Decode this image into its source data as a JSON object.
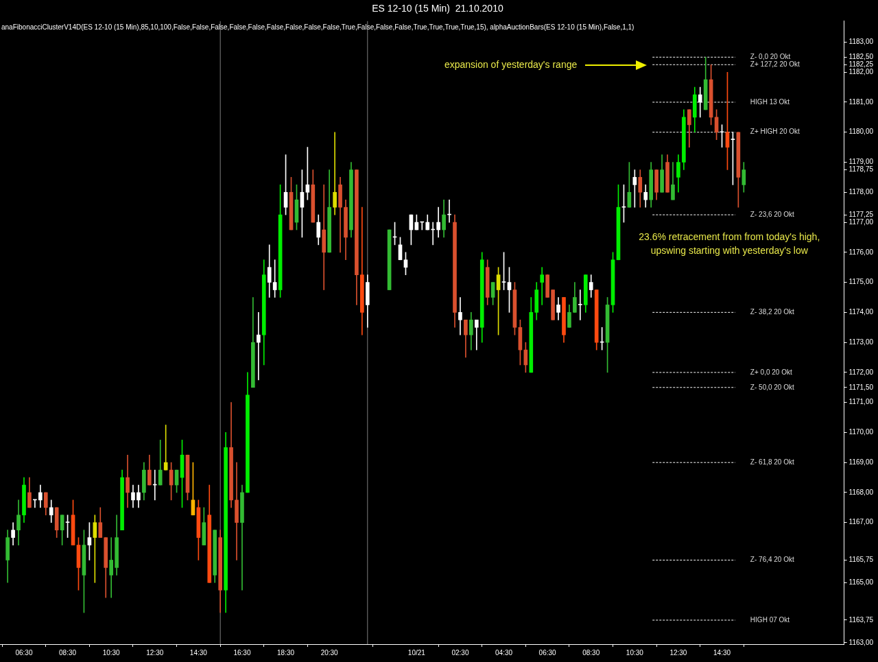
{
  "chart_data": {
    "type": "candlestick",
    "title": "ES 12-10 (15 Min)  21.10.2010",
    "x": [
      "2010-10-20T05:45",
      "2010-10-20T06:00",
      "2010-10-20T06:15",
      "2010-10-20T06:30",
      "2010-10-20T06:45",
      "2010-10-20T07:00",
      "2010-10-20T07:15",
      "2010-10-20T07:30",
      "2010-10-20T07:45",
      "2010-10-20T08:00",
      "2010-10-20T08:15",
      "2010-10-20T08:30",
      "2010-10-20T08:45",
      "2010-10-20T09:00",
      "2010-10-20T09:15",
      "2010-10-20T09:30",
      "2010-10-20T09:45",
      "2010-10-20T10:00",
      "2010-10-20T10:15",
      "2010-10-20T10:30",
      "2010-10-20T10:45",
      "2010-10-20T11:00",
      "2010-10-20T11:15",
      "2010-10-20T11:30",
      "2010-10-20T11:45",
      "2010-10-20T12:00",
      "2010-10-20T12:15",
      "2010-10-20T12:30",
      "2010-10-20T12:45",
      "2010-10-20T13:00",
      "2010-10-20T13:15",
      "2010-10-20T13:30",
      "2010-10-20T13:45",
      "2010-10-20T14:00",
      "2010-10-20T14:15",
      "2010-10-20T14:30",
      "2010-10-20T14:45",
      "2010-10-20T15:00",
      "2010-10-20T15:15",
      "2010-10-20T15:30",
      "2010-10-20T15:45",
      "2010-10-20T16:00",
      "2010-10-20T16:15",
      "2010-10-20T16:30",
      "2010-10-20T16:45",
      "2010-10-20T17:00",
      "2010-10-20T17:15",
      "2010-10-20T17:30",
      "2010-10-20T17:45",
      "2010-10-20T18:00",
      "2010-10-20T18:15",
      "2010-10-20T18:30",
      "2010-10-20T18:45",
      "2010-10-20T19:00",
      "2010-10-20T19:15",
      "2010-10-20T19:30",
      "2010-10-20T19:45",
      "2010-10-20T20:00",
      "2010-10-20T20:15",
      "2010-10-20T20:30",
      "2010-10-20T20:45",
      "2010-10-20T21:00",
      "2010-10-20T21:15",
      "2010-10-20T21:30",
      "2010-10-20T21:45",
      "2010-10-20T22:00",
      "2010-10-20T22:15",
      "2010-10-20T23:15",
      "2010-10-20T23:30",
      "2010-10-20T23:45",
      "2010-10-21T00:00",
      "2010-10-21T00:15",
      "2010-10-21T00:30",
      "2010-10-21T00:45",
      "2010-10-21T01:00",
      "2010-10-21T01:15",
      "2010-10-21T01:30",
      "2010-10-21T01:45",
      "2010-10-21T02:00",
      "2010-10-21T02:15",
      "2010-10-21T02:30",
      "2010-10-21T02:45",
      "2010-10-21T03:00",
      "2010-10-21T03:15",
      "2010-10-21T03:30",
      "2010-10-21T03:45",
      "2010-10-21T04:00",
      "2010-10-21T04:15",
      "2010-10-21T04:30",
      "2010-10-21T04:45",
      "2010-10-21T05:00",
      "2010-10-21T05:15",
      "2010-10-21T05:30",
      "2010-10-21T05:45",
      "2010-10-21T06:00",
      "2010-10-21T06:15",
      "2010-10-21T06:30",
      "2010-10-21T06:45",
      "2010-10-21T07:00",
      "2010-10-21T07:15",
      "2010-10-21T07:30",
      "2010-10-21T07:45",
      "2010-10-21T08:00",
      "2010-10-21T08:15",
      "2010-10-21T08:30",
      "2010-10-21T08:45",
      "2010-10-21T09:00",
      "2010-10-21T09:15",
      "2010-10-21T09:30",
      "2010-10-21T09:45",
      "2010-10-21T10:00",
      "2010-10-21T10:15",
      "2010-10-21T10:30",
      "2010-10-21T10:45",
      "2010-10-21T11:00",
      "2010-10-21T11:15",
      "2010-10-21T11:30",
      "2010-10-21T11:45",
      "2010-10-21T12:00",
      "2010-10-21T12:15",
      "2010-10-21T12:30",
      "2010-10-21T12:45",
      "2010-10-21T13:00",
      "2010-10-21T13:15",
      "2010-10-21T13:30",
      "2010-10-21T13:45",
      "2010-10-21T14:00",
      "2010-10-21T14:15",
      "2010-10-21T14:30",
      "2010-10-21T14:45",
      "2010-10-21T15:00",
      "2010-10-21T15:15",
      "2010-10-21T15:30"
    ],
    "ohlc": [
      [
        1165.75,
        1166.75,
        1165,
        1166.5
      ],
      [
        1166.5,
        1167,
        1166.25,
        1166.75
      ],
      [
        1166.75,
        1167.75,
        1166.25,
        1167.25
      ],
      [
        1167.25,
        1168.5,
        1167,
        1168.25
      ],
      [
        1168,
        1168.5,
        1167.5,
        1167.5
      ],
      [
        1167.75,
        1167.75,
        1167.5,
        1167.75
      ],
      [
        1167.75,
        1168.25,
        1167.5,
        1168
      ],
      [
        1168,
        1168,
        1167.25,
        1167.5
      ],
      [
        1167.5,
        1167.75,
        1167,
        1167.25
      ],
      [
        1167.5,
        1167.5,
        1166.5,
        1166.75
      ],
      [
        1166.75,
        1167.25,
        1166.25,
        1167.25
      ],
      [
        1167,
        1167.25,
        1166.5,
        1167
      ],
      [
        1167.25,
        1167.75,
        1166.25,
        1166.25
      ],
      [
        1166.25,
        1166.5,
        1164.75,
        1165.5
      ],
      [
        1165.25,
        1166.75,
        1164,
        1166.25
      ],
      [
        1166.5,
        1167,
        1165.75,
        1166.25
      ],
      [
        1166.5,
        1167.25,
        1165,
        1167
      ],
      [
        1167,
        1167.5,
        1166.5,
        1166.5
      ],
      [
        1166.5,
        1166.5,
        1164.5,
        1165.5
      ],
      [
        1165.25,
        1166.5,
        1164.5,
        1165.75
      ],
      [
        1165.5,
        1167.25,
        1165.25,
        1166.5
      ],
      [
        1166.75,
        1168.75,
        1166.75,
        1168.5
      ],
      [
        1168.5,
        1169.25,
        1167.5,
        1168
      ],
      [
        1168,
        1168.25,
        1167.5,
        1167.75
      ],
      [
        1167.75,
        1168.25,
        1167.5,
        1168
      ],
      [
        1168,
        1169,
        1167.75,
        1168.75
      ],
      [
        1168.75,
        1169.25,
        1168.25,
        1168.25
      ],
      [
        1168.25,
        1168.75,
        1167.75,
        1168.25
      ],
      [
        1168.25,
        1169.75,
        1168.25,
        1168.75
      ],
      [
        1168.75,
        1170.25,
        1168.75,
        1169
      ],
      [
        1168.75,
        1169,
        1167.75,
        1168.25
      ],
      [
        1168.25,
        1168.75,
        1168,
        1168.75
      ],
      [
        1168.5,
        1169.75,
        1167.5,
        1169.25
      ],
      [
        1169.25,
        1169.25,
        1167.75,
        1168
      ],
      [
        1167.75,
        1169,
        1167.25,
        1167.25
      ],
      [
        1167.5,
        1167.75,
        1165.75,
        1166.5
      ],
      [
        1166.25,
        1167.5,
        1166.25,
        1167
      ],
      [
        1167.25,
        1168.25,
        1165,
        1165
      ],
      [
        1165.25,
        1166.75,
        1165,
        1166.75
      ],
      [
        1166.5,
        1166.75,
        1164,
        1164.75
      ],
      [
        1164.75,
        1170,
        1164,
        1169.5
      ],
      [
        1169.5,
        1171,
        1167.5,
        1167.75
      ],
      [
        1167.75,
        1169,
        1165.75,
        1167
      ],
      [
        1167,
        1168.25,
        1164.75,
        1168
      ],
      [
        1168,
        1172,
        1168,
        1171.25
      ],
      [
        1171.5,
        1174.5,
        1171.5,
        1173
      ],
      [
        1173,
        1174,
        1171.75,
        1173.25
      ],
      [
        1173.25,
        1175.75,
        1172.25,
        1175.25
      ],
      [
        1175.5,
        1176.25,
        1174.5,
        1175
      ],
      [
        1175,
        1175.75,
        1174.5,
        1174.75
      ],
      [
        1174.75,
        1178.25,
        1174.5,
        1177.25
      ],
      [
        1177.5,
        1179.25,
        1177.25,
        1178
      ],
      [
        1178,
        1178.5,
        1176.75,
        1176.75
      ],
      [
        1177,
        1178.25,
        1176.75,
        1177.75
      ],
      [
        1177.5,
        1178.75,
        1176.5,
        1178
      ],
      [
        1178,
        1179.5,
        1177.75,
        1178.25
      ],
      [
        1178.25,
        1178.75,
        1177,
        1177
      ],
      [
        1177,
        1177.25,
        1176.25,
        1176.5
      ],
      [
        1176.75,
        1178.25,
        1174.75,
        1176
      ],
      [
        1176,
        1178.75,
        1176,
        1177.5
      ],
      [
        1177.5,
        1180,
        1177.25,
        1178
      ],
      [
        1178.25,
        1178.5,
        1176,
        1177.5
      ],
      [
        1177.5,
        1177.75,
        1175.75,
        1176.5
      ],
      [
        1176.75,
        1179,
        1176.5,
        1178.75
      ],
      [
        1178.75,
        1178.75,
        1174.25,
        1175.25
      ],
      [
        1175.25,
        1177.5,
        1173.25,
        1174
      ],
      [
        1174.25,
        1175.25,
        1173.5,
        1175
      ],
      [
        1174.75,
        1176.75,
        1174.75,
        1176.75
      ],
      [
        1176.5,
        1177,
        1176.25,
        1176.5
      ],
      [
        1176.25,
        1176.5,
        1175.75,
        1175.75
      ],
      [
        1175.75,
        1176,
        1175.25,
        1175.5
      ],
      [
        1176.75,
        1177.25,
        1176.25,
        1177.25
      ],
      [
        1177,
        1177.25,
        1176.75,
        1176.75
      ],
      [
        1177,
        1177,
        1176.75,
        1177
      ],
      [
        1177,
        1177.25,
        1176.75,
        1176.75
      ],
      [
        1176.75,
        1177,
        1176.25,
        1176.75
      ],
      [
        1177,
        1177.5,
        1176.5,
        1176.75
      ],
      [
        1176.75,
        1177.75,
        1176.5,
        1177.25
      ],
      [
        1177.25,
        1177.75,
        1177,
        1177.25
      ],
      [
        1177,
        1177.25,
        1173.5,
        1174
      ],
      [
        1174,
        1174.5,
        1173.25,
        1173.75
      ],
      [
        1173.75,
        1173.75,
        1172.5,
        1173.25
      ],
      [
        1173.25,
        1174,
        1172.75,
        1173.75
      ],
      [
        1173.5,
        1173.75,
        1172.75,
        1173.75
      ],
      [
        1173.5,
        1176,
        1173,
        1175.75
      ],
      [
        1175.5,
        1175.75,
        1174.25,
        1174.5
      ],
      [
        1174.5,
        1175,
        1174.25,
        1175
      ],
      [
        1174.75,
        1175.5,
        1173.25,
        1175.25
      ],
      [
        1175,
        1176,
        1174.75,
        1175
      ],
      [
        1175,
        1175.5,
        1174,
        1174.75
      ],
      [
        1174.75,
        1175,
        1173.25,
        1173.5
      ],
      [
        1173.5,
        1173.75,
        1172.25,
        1172.75
      ],
      [
        1172.75,
        1173,
        1172,
        1172.25
      ],
      [
        1172,
        1174.5,
        1172,
        1174
      ],
      [
        1174,
        1175,
        1173.75,
        1174.75
      ],
      [
        1175,
        1175.5,
        1174.25,
        1175.25
      ],
      [
        1175.25,
        1175.25,
        1174.5,
        1174.5
      ],
      [
        1174.75,
        1174.75,
        1173.75,
        1173.75
      ],
      [
        1174,
        1174.5,
        1173.75,
        1174.25
      ],
      [
        1174.5,
        1174.5,
        1173,
        1173.25
      ],
      [
        1173.5,
        1174.25,
        1173.5,
        1174
      ],
      [
        1174,
        1175,
        1174,
        1174.5
      ],
      [
        1174.25,
        1174.75,
        1173.75,
        1174.25
      ],
      [
        1174.25,
        1175.25,
        1174,
        1175.25
      ],
      [
        1175,
        1175.25,
        1174.5,
        1174.75
      ],
      [
        1174.75,
        1174.75,
        1172.75,
        1173
      ],
      [
        1173,
        1173.5,
        1172.75,
        1173
      ],
      [
        1173,
        1174.5,
        1172,
        1174.25
      ],
      [
        1174.25,
        1176,
        1174,
        1175.75
      ],
      [
        1175.75,
        1178.25,
        1175.75,
        1177.5
      ],
      [
        1177.5,
        1178.25,
        1177,
        1177.5
      ],
      [
        1177.5,
        1179,
        1177.5,
        1178
      ],
      [
        1178.25,
        1178.75,
        1177.5,
        1178.5
      ],
      [
        1178.5,
        1178.75,
        1177.5,
        1178
      ],
      [
        1178,
        1178.25,
        1177.5,
        1177.75
      ],
      [
        1177.75,
        1179,
        1177.5,
        1178.75
      ],
      [
        1178.75,
        1178.75,
        1177.75,
        1178
      ],
      [
        1178,
        1179.25,
        1178,
        1178.75
      ],
      [
        1179,
        1179.25,
        1178,
        1178
      ],
      [
        1177.75,
        1179,
        1177.75,
        1178.25
      ],
      [
        1178.5,
        1179.25,
        1178,
        1179
      ],
      [
        1179,
        1180.75,
        1178.75,
        1180.5
      ],
      [
        1180.75,
        1180.75,
        1179.5,
        1180.25
      ],
      [
        1180.5,
        1181.5,
        1180,
        1181.25
      ],
      [
        1181.25,
        1181.5,
        1180.5,
        1181
      ],
      [
        1180.75,
        1182.5,
        1180.75,
        1181.75
      ],
      [
        1181.75,
        1182.25,
        1180.25,
        1180.5
      ],
      [
        1180.5,
        1180.75,
        1179.75,
        1180
      ],
      [
        1180,
        1180.25,
        1179.5,
        1180
      ],
      [
        1180,
        1182,
        1178.75,
        1179.5
      ],
      [
        1179.75,
        1180,
        1178.25,
        1179.75
      ],
      [
        1180,
        1180,
        1177.5,
        1178.5
      ],
      [
        1178.25,
        1179,
        1178,
        1178.75
      ]
    ],
    "colors": [
      "#33bb33",
      "#ffffff",
      "#33bb33",
      "#00ee00",
      "#d9502e",
      "#ffffff",
      "#ffffff",
      "#d9502e",
      "#ffffff",
      "#d9502e",
      "#33bb33",
      "#ffffff",
      "#ff4a10",
      "#ff4a10",
      "#33bb33",
      "#ffffff",
      "#dddd00",
      "#d9502e",
      "#d9502e",
      "#33bb33",
      "#33bb33",
      "#00ee00",
      "#d9502e",
      "#ffffff",
      "#ffffff",
      "#33bb33",
      "#d9502e",
      "#ffffff",
      "#33bb33",
      "#dddd00",
      "#d9502e",
      "#33bb33",
      "#00ee00",
      "#d9502e",
      "#ffb300",
      "#ff4a10",
      "#33bb33",
      "#ff4a10",
      "#33bb33",
      "#d9502e",
      "#00ee00",
      "#d9502e",
      "#d9502e",
      "#33bb33",
      "#00ee00",
      "#33bb33",
      "#ffffff",
      "#00ee00",
      "#ffffff",
      "#ffffff",
      "#00ee00",
      "#ffffff",
      "#d9502e",
      "#33bb33",
      "#ffffff",
      "#ffffff",
      "#d9502e",
      "#ffffff",
      "#d9502e",
      "#33bb33",
      "#dddd00",
      "#d9502e",
      "#d9502e",
      "#33bb33",
      "#d9502e",
      "#ff4a10",
      "#ffffff",
      "#33bb33",
      "#ffffff",
      "#ffffff",
      "#ffffff",
      "#ffffff",
      "#ffffff",
      "#ffffff",
      "#ffffff",
      "#ffffff",
      "#ffffff",
      "#33bb33",
      "#ffffff",
      "#d9502e",
      "#ffffff",
      "#d9502e",
      "#33bb33",
      "#ffffff",
      "#00ee00",
      "#d9502e",
      "#33bb33",
      "#dddd00",
      "#ffffff",
      "#ffffff",
      "#d9502e",
      "#d9502e",
      "#d9502e",
      "#00ee00",
      "#00ee00",
      "#00ee00",
      "#d9502e",
      "#d9502e",
      "#ffffff",
      "#ff4a10",
      "#33bb33",
      "#33bb33",
      "#ffffff",
      "#00ee00",
      "#ffffff",
      "#ff4a10",
      "#ffffff",
      "#33bb33",
      "#00ee00",
      "#00ee00",
      "#ffffff",
      "#33bb33",
      "#ffffff",
      "#d9502e",
      "#ffffff",
      "#33bb33",
      "#d9502e",
      "#33bb33",
      "#d9502e",
      "#33bb33",
      "#00ee00",
      "#00ee00",
      "#d9502e",
      "#00ee00",
      "#ffffff",
      "#33bb33",
      "#d9502e",
      "#d9502e",
      "#ffffff",
      "#ff4a10",
      "#ffffff",
      "#d9502e",
      "#33bb33"
    ],
    "xlim": [
      "2010-10-20T05:24",
      "2010-10-21T20:06"
    ],
    "xticks": [
      {
        "value": "2010-10-20T06:30",
        "label": "06:30"
      },
      {
        "value": "2010-10-20T08:30",
        "label": "08:30"
      },
      {
        "value": "2010-10-20T10:30",
        "label": "10:30"
      },
      {
        "value": "2010-10-20T12:30",
        "label": "12:30"
      },
      {
        "value": "2010-10-20T14:30",
        "label": "14:30"
      },
      {
        "value": "2010-10-20T16:30",
        "label": "16:30"
      },
      {
        "value": "2010-10-20T18:30",
        "label": "18:30"
      },
      {
        "value": "2010-10-20T20:30",
        "label": "20:30"
      },
      {
        "value": "2010-10-21T00:30",
        "label": "10/21"
      },
      {
        "value": "2010-10-21T02:30",
        "label": "02:30"
      },
      {
        "value": "2010-10-21T04:30",
        "label": "04:30"
      },
      {
        "value": "2010-10-21T06:30",
        "label": "06:30"
      },
      {
        "value": "2010-10-21T08:30",
        "label": "08:30"
      },
      {
        "value": "2010-10-21T10:30",
        "label": "10:30"
      },
      {
        "value": "2010-10-21T12:30",
        "label": "12:30"
      },
      {
        "value": "2010-10-21T14:30",
        "label": "14:30"
      }
    ],
    "ylim": [
      1162.95,
      1183.7
    ],
    "yticks": [
      {
        "value": 1163,
        "label": "1163,00"
      },
      {
        "value": 1163.75,
        "label": "1163,75"
      },
      {
        "value": 1165,
        "label": "1165,00"
      },
      {
        "value": 1165.75,
        "label": "1165,75"
      },
      {
        "value": 1167,
        "label": "1167,00"
      },
      {
        "value": 1168,
        "label": "1168,00"
      },
      {
        "value": 1169,
        "label": "1169,00"
      },
      {
        "value": 1170,
        "label": "1170,00"
      },
      {
        "value": 1171,
        "label": "1171,00"
      },
      {
        "value": 1171.5,
        "label": "1171,50"
      },
      {
        "value": 1172,
        "label": "1172,00"
      },
      {
        "value": 1173,
        "label": "1173,00"
      },
      {
        "value": 1174,
        "label": "1174,00"
      },
      {
        "value": 1175,
        "label": "1175,00"
      },
      {
        "value": 1176,
        "label": "1176,00"
      },
      {
        "value": 1177,
        "label": "1177,00"
      },
      {
        "value": 1177.25,
        "label": "1177,25"
      },
      {
        "value": 1178,
        "label": "1178,00"
      },
      {
        "value": 1178.75,
        "label": "1178,75"
      },
      {
        "value": 1179,
        "label": "1179,00"
      },
      {
        "value": 1180,
        "label": "1180,00"
      },
      {
        "value": 1181,
        "label": "1181,00"
      },
      {
        "value": 1182,
        "label": "1182,00"
      },
      {
        "value": 1182.25,
        "label": "1182,25"
      },
      {
        "value": 1182.5,
        "label": "1182,50"
      },
      {
        "value": 1183,
        "label": "1183,00"
      }
    ],
    "ref_lines": [
      {
        "axis": "x",
        "value": "2010-10-20T15:30",
        "color": "#7f7f7f"
      },
      {
        "axis": "x",
        "value": "2010-10-20T22:15",
        "color": "#7f7f7f"
      },
      {
        "axis": "y",
        "value": 1182.5,
        "label": "Z- 0,0 20 Okt",
        "color": "#ffffff",
        "line_style": "dashed"
      },
      {
        "axis": "y",
        "value": 1182.25,
        "label": "Z+ 127,2 20 Okt",
        "color": "#ffffff",
        "line_style": "dashed"
      },
      {
        "axis": "y",
        "value": 1181,
        "label": "HIGH 13 Okt",
        "color": "#ffffff",
        "line_style": "dashed"
      },
      {
        "axis": "y",
        "value": 1180,
        "label": "Z+ HIGH 20 Okt",
        "color": "#ffffff",
        "line_style": "dashed"
      },
      {
        "axis": "y",
        "value": 1177.25,
        "label": "Z- 23,6 20 Okt",
        "color": "#ffffff",
        "line_style": "dashed"
      },
      {
        "axis": "y",
        "value": 1174,
        "label": "Z- 38,2 20 Okt",
        "color": "#ffffff",
        "line_style": "dashed"
      },
      {
        "axis": "y",
        "value": 1172,
        "label": "Z+ 0,0 20 Okt",
        "color": "#ffffff",
        "line_style": "dashed"
      },
      {
        "axis": "y",
        "value": 1171.5,
        "label": "Z- 50,0 20 Okt",
        "color": "#ffffff",
        "line_style": "dashed"
      },
      {
        "axis": "y",
        "value": 1169,
        "label": "Z- 61,8 20 Okt",
        "color": "#ffffff",
        "line_style": "dashed"
      },
      {
        "axis": "y",
        "value": 1165.75,
        "label": "Z- 76,4 20 Okt",
        "color": "#ffffff",
        "line_style": "dashed"
      },
      {
        "axis": "y",
        "value": 1163.75,
        "label": "HIGH 07 Okt",
        "color": "#ffffff",
        "line_style": "dashed"
      }
    ],
    "annotations": [
      "anaFibonacciClusterV14D(ES 12-10 (15 Min),85,10,100,False,False,False,False,False,False,False,False,False,True,False,False,False,True,True,True,True,15), alphaAuctionBars(ES 12-10 (15 Min),False,1,1)",
      "expansion of yesterday's range",
      {
        "text": "23.6% retracement from from today's high,\nupswing starting with yesterday's low",
        "y": 1177.25
      }
    ]
  }
}
